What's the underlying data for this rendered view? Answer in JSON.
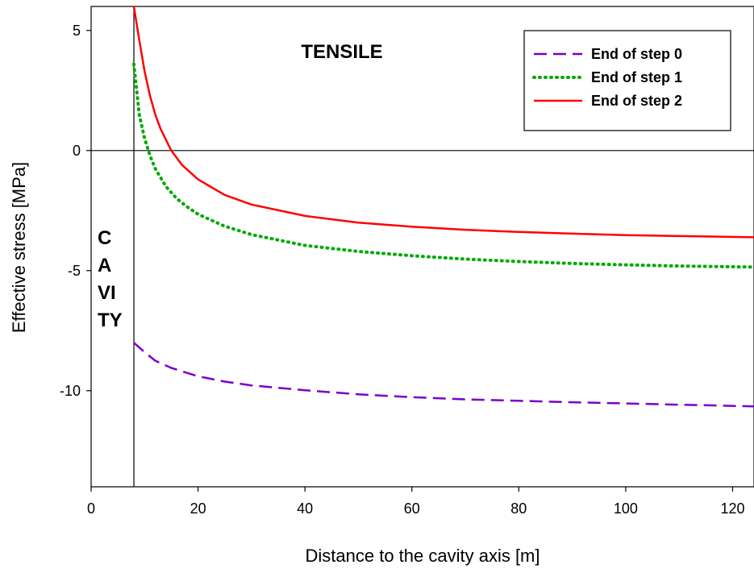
{
  "chart_data": {
    "type": "line",
    "title": "",
    "xlabel": "Distance to the cavity axis [m]",
    "ylabel": "Effective stress [MPa]",
    "xlim": [
      0,
      124
    ],
    "ylim": [
      -14,
      6
    ],
    "xticks": [
      0,
      20,
      40,
      60,
      80,
      100,
      120
    ],
    "yticks": [
      5,
      0,
      -5,
      -10
    ],
    "grid": false,
    "legend_position": "top-right",
    "annotations": {
      "tensile": "TENSILE",
      "cavity_lines": [
        "C",
        "A",
        "VI",
        "TY"
      ]
    },
    "reference_lines": {
      "zero_stress": 0,
      "cavity_wall_x": 8
    },
    "series": [
      {
        "name": "End of step 0",
        "style": "dashed",
        "color": "#7a00cc",
        "x": [
          8,
          10,
          12,
          15,
          20,
          25,
          30,
          40,
          50,
          60,
          70,
          80,
          90,
          100,
          110,
          124
        ],
        "y": [
          -8.0,
          -8.4,
          -8.75,
          -9.05,
          -9.4,
          -9.62,
          -9.78,
          -9.98,
          -10.15,
          -10.27,
          -10.36,
          -10.42,
          -10.48,
          -10.53,
          -10.58,
          -10.65
        ]
      },
      {
        "name": "End of step 1",
        "style": "dotted",
        "color": "#00aa00",
        "x": [
          8,
          9,
          10,
          11,
          12,
          14,
          16,
          18,
          20,
          25,
          30,
          40,
          50,
          60,
          70,
          80,
          90,
          100,
          110,
          124
        ],
        "y": [
          3.6,
          1.5,
          0.5,
          -0.2,
          -0.75,
          -1.5,
          -2.0,
          -2.35,
          -2.65,
          -3.15,
          -3.5,
          -3.95,
          -4.2,
          -4.38,
          -4.52,
          -4.62,
          -4.7,
          -4.76,
          -4.81,
          -4.85
        ]
      },
      {
        "name": "End of step 2",
        "style": "solid",
        "color": "#ff0000",
        "x": [
          8,
          9,
          10,
          11,
          12,
          13,
          15,
          17,
          20,
          25,
          30,
          40,
          50,
          60,
          70,
          80,
          90,
          100,
          110,
          124
        ],
        "y": [
          6.0,
          4.6,
          3.3,
          2.3,
          1.5,
          0.9,
          0.0,
          -0.6,
          -1.2,
          -1.85,
          -2.25,
          -2.72,
          -3.0,
          -3.17,
          -3.3,
          -3.39,
          -3.46,
          -3.52,
          -3.56,
          -3.61
        ]
      }
    ]
  }
}
